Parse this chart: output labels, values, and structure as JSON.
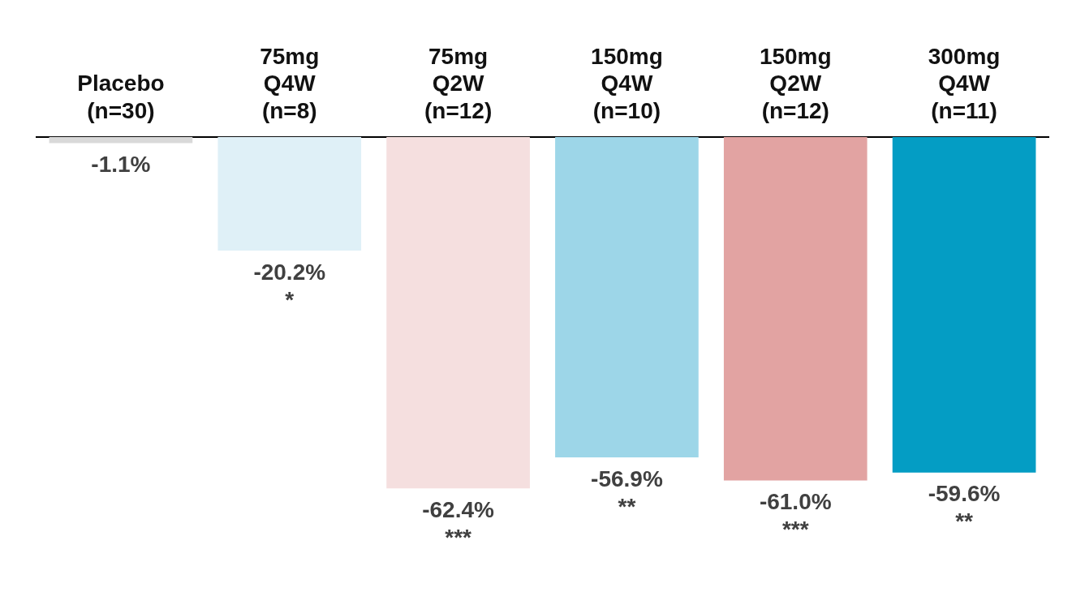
{
  "chart_data": {
    "type": "bar",
    "categories": [
      "Placebo\n(n=30)",
      "75mg\nQ4W\n(n=8)",
      "75mg\nQ2W\n(n=12)",
      "150mg\nQ4W\n(n=10)",
      "150mg\nQ2W\n(n=12)",
      "300mg\nQ4W\n(n=11)"
    ],
    "values": [
      -1.1,
      -20.2,
      -62.4,
      -56.9,
      -61.0,
      -59.6
    ],
    "colors": [
      "#d9d9d9",
      "#dff0f7",
      "#f5dfdf",
      "#9dd6e8",
      "#e2a3a2",
      "#049dc4"
    ],
    "value_labels": [
      "-1.1%",
      "-20.2%\n*",
      "-62.4%\n***",
      "-56.9%\n**",
      "-61.0%\n***",
      "-59.6%\n**"
    ],
    "tick_labels": "x",
    "legend": false
  }
}
